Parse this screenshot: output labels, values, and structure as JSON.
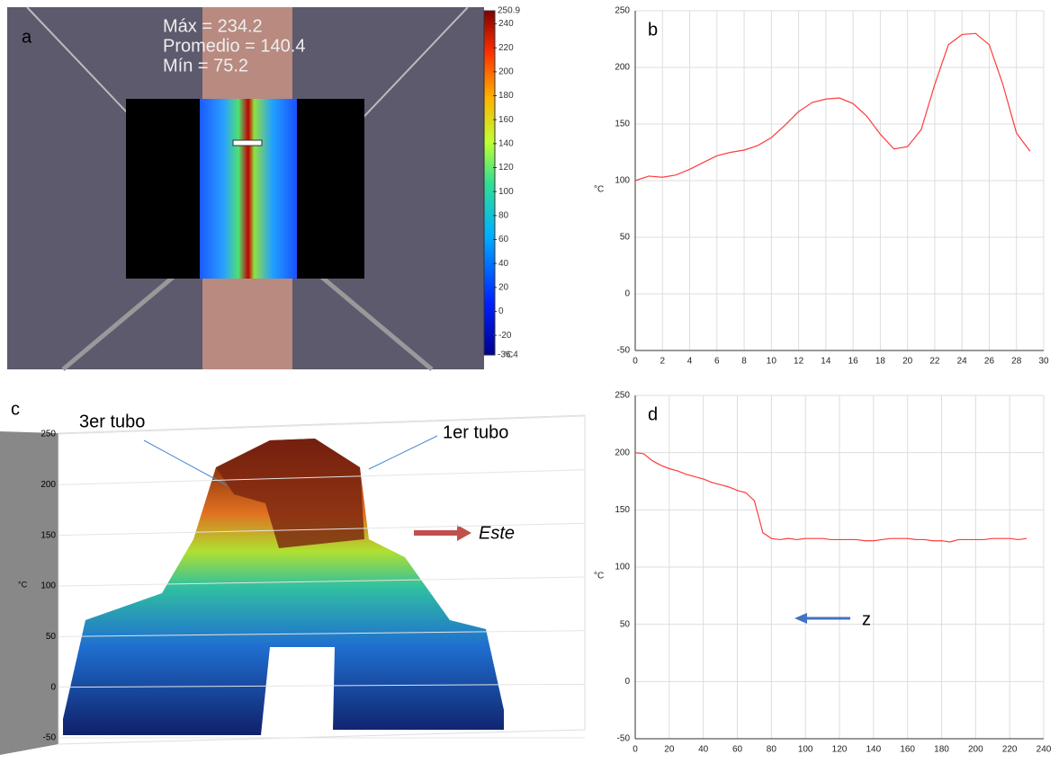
{
  "chart_data": [
    {
      "type": "line",
      "label": "b",
      "ylabel": "°C",
      "x": [
        0,
        1,
        2,
        3,
        4,
        5,
        6,
        7,
        8,
        9,
        10,
        11,
        12,
        13,
        14,
        15,
        16,
        17,
        18,
        19,
        20,
        21,
        22,
        23,
        24,
        25,
        26,
        27,
        28,
        29
      ],
      "series": [
        {
          "color": "#ff3b3b",
          "values": [
            100,
            104,
            103,
            105,
            110,
            116,
            122,
            125,
            127,
            131,
            138,
            149,
            161,
            169,
            172,
            173,
            168,
            157,
            141,
            128,
            130,
            145,
            185,
            220,
            229,
            230,
            220,
            185,
            142,
            126
          ]
        }
      ],
      "xlim": [
        0,
        30
      ],
      "xticks": [
        0,
        2,
        4,
        6,
        8,
        10,
        12,
        14,
        16,
        18,
        20,
        22,
        24,
        26,
        28,
        30
      ],
      "ylim": [
        -50,
        250
      ],
      "yticks": [
        -50,
        0,
        50,
        100,
        150,
        200,
        250
      ],
      "grid": true
    },
    {
      "type": "line",
      "label": "d",
      "ylabel": "°C",
      "annotation": "z",
      "x": [
        0,
        5,
        10,
        15,
        20,
        25,
        30,
        35,
        40,
        45,
        50,
        55,
        60,
        65,
        70,
        75,
        80,
        85,
        90,
        95,
        100,
        105,
        110,
        115,
        120,
        125,
        130,
        135,
        140,
        145,
        150,
        155,
        160,
        165,
        170,
        175,
        180,
        185,
        190,
        195,
        200,
        205,
        210,
        215,
        220,
        225,
        230
      ],
      "series": [
        {
          "color": "#ff3b3b",
          "values": [
            200,
            199,
            193,
            189,
            186,
            184,
            181,
            179,
            177,
            174,
            172,
            170,
            167,
            165,
            158,
            130,
            125,
            124,
            125,
            124,
            125,
            125,
            125,
            124,
            124,
            124,
            124,
            123,
            123,
            124,
            125,
            125,
            125,
            124,
            124,
            123,
            123,
            122,
            124,
            124,
            124,
            124,
            125,
            125,
            125,
            124,
            125
          ]
        }
      ],
      "xlim": [
        0,
        240
      ],
      "xticks": [
        0,
        20,
        40,
        60,
        80,
        100,
        120,
        140,
        160,
        180,
        200,
        220,
        240
      ],
      "ylim": [
        -50,
        250
      ],
      "yticks": [
        -50,
        0,
        50,
        100,
        150,
        200,
        250
      ],
      "grid": true
    }
  ],
  "thermal_image": {
    "label": "a",
    "stats": [
      "Máx = 234.2",
      "Promedio = 140.4",
      "Mín = 75.2"
    ],
    "clim": [
      -36.4,
      250.9
    ],
    "cticks": [
      -20,
      0,
      20,
      40,
      60,
      80,
      100,
      120,
      140,
      160,
      180,
      200,
      220,
      240
    ],
    "unit": "°C"
  },
  "surface_plot": {
    "label": "c",
    "ylabel": "°C",
    "ylim": [
      -50,
      250
    ],
    "yticks": [
      -50,
      0,
      50,
      100,
      150,
      200,
      250
    ],
    "annotations": [
      "3er tubo",
      "1er tubo",
      "Este"
    ]
  }
}
